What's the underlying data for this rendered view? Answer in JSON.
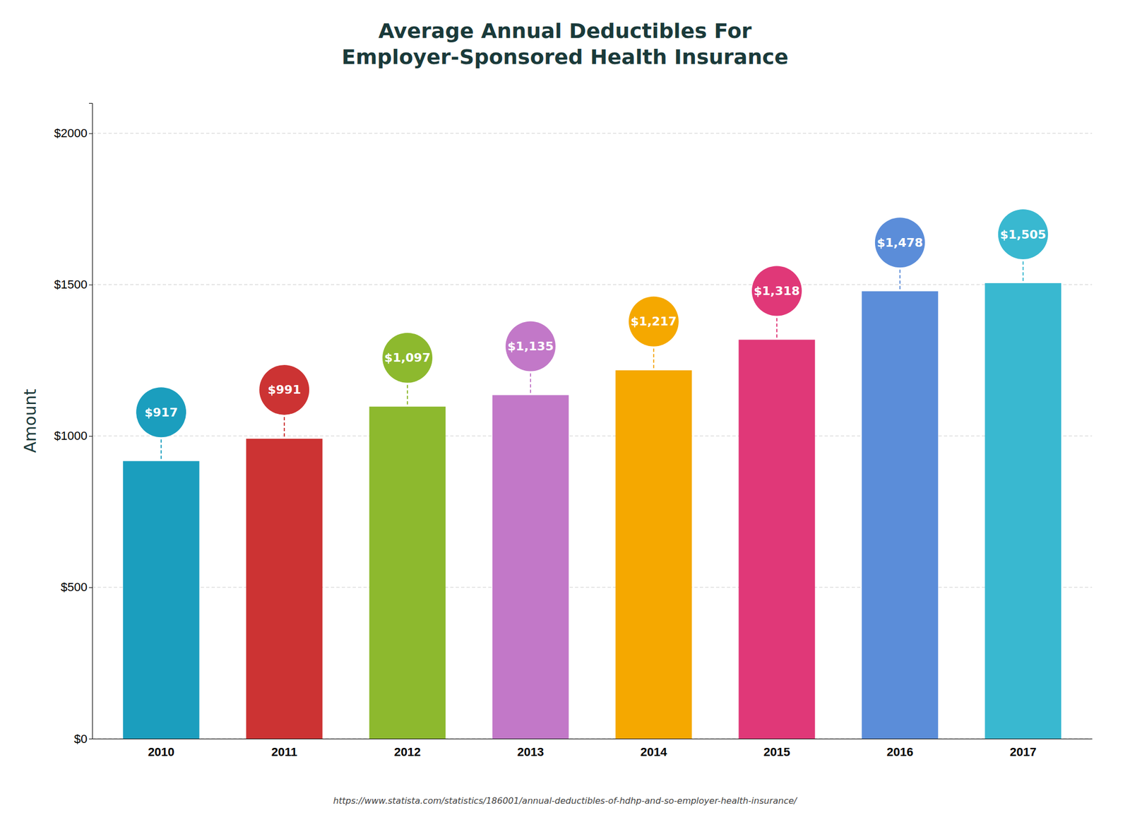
{
  "chart_data": {
    "type": "bar",
    "title": "Average Annual Deductibles For\nEmployer-Sponsored Health Insurance",
    "ylabel": "Amount",
    "annotations": [
      "https://www.statista.com/statistics/186001/annual-deductibles-of-hdhp-and-so-employer-health-insurance/"
    ],
    "categories": [
      "2010",
      "2011",
      "2012",
      "2013",
      "2014",
      "2015",
      "2016",
      "2017"
    ],
    "values": [
      917,
      991,
      1097,
      1135,
      1217,
      1318,
      1478,
      1505
    ],
    "value_labels": [
      "$917",
      "$991",
      "$1,097",
      "$1,135",
      "$1,217",
      "$1,318",
      "$1,478",
      "$1,505"
    ],
    "data_labels": true,
    "colors": [
      "#1b9ebe",
      "#cc3333",
      "#8db92e",
      "#c278c8",
      "#f5a800",
      "#e03878",
      "#5b8dd9",
      "#39b8d0"
    ],
    "ylim": [
      0,
      2100
    ],
    "yticks": [
      {
        "value": 0,
        "label": "$0"
      },
      {
        "value": 500,
        "label": "$500"
      },
      {
        "value": 1000,
        "label": "$1000"
      },
      {
        "value": 1500,
        "label": "$1500"
      },
      {
        "value": 2000,
        "label": "$2000"
      }
    ],
    "grid": true
  }
}
